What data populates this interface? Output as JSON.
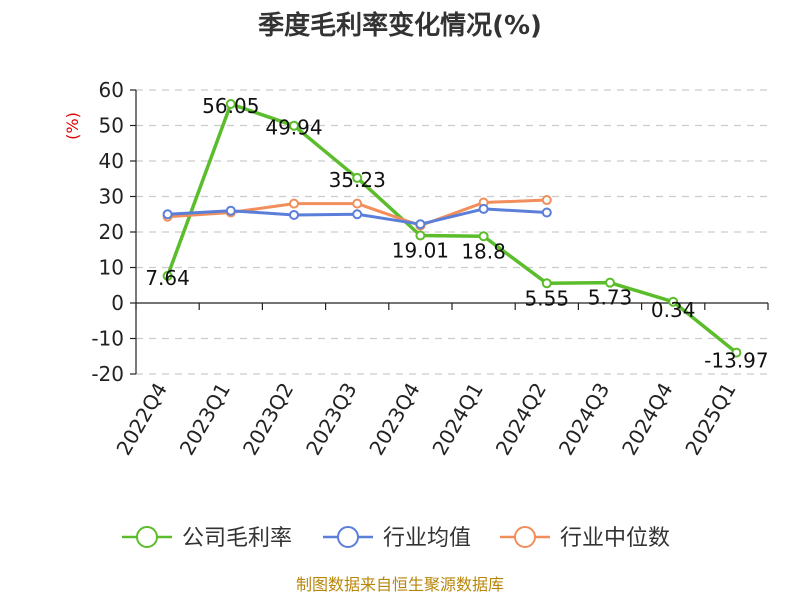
{
  "chart_data": {
    "type": "line",
    "title": "季度毛利率变化情况(%)",
    "ylabel": "(%)",
    "xlabel": "",
    "categories": [
      "2022Q4",
      "2023Q1",
      "2023Q2",
      "2023Q3",
      "2023Q4",
      "2024Q1",
      "2024Q2",
      "2024Q3",
      "2024Q4",
      "2025Q1"
    ],
    "ylim": [
      -20,
      60
    ],
    "yticks": [
      60,
      50,
      40,
      30,
      20,
      10,
      0,
      -10,
      -20
    ],
    "grid": true,
    "legend_position": "bottom",
    "series": [
      {
        "name": "公司毛利率",
        "color": "#5bbd2b",
        "values": [
          7.64,
          56.05,
          49.94,
          35.23,
          19.01,
          18.8,
          5.55,
          5.73,
          0.34,
          -13.97
        ],
        "labels": [
          "7.64",
          "56.05",
          "49.94",
          "35.23",
          "19.01",
          "18.8",
          "5.55",
          "5.73",
          "0.34",
          "-13.97"
        ]
      },
      {
        "name": "行业均值",
        "color": "#5b7fd9",
        "values": [
          25.0,
          26.0,
          24.8,
          25.0,
          22.2,
          26.5,
          25.5,
          null,
          null,
          null
        ]
      },
      {
        "name": "行业中位数",
        "color": "#f28e5b",
        "values": [
          24.3,
          25.5,
          28.0,
          28.0,
          21.8,
          28.3,
          29.0,
          null,
          null,
          null
        ]
      }
    ]
  },
  "footer": {
    "source": "制图数据来自恒生聚源数据库"
  }
}
